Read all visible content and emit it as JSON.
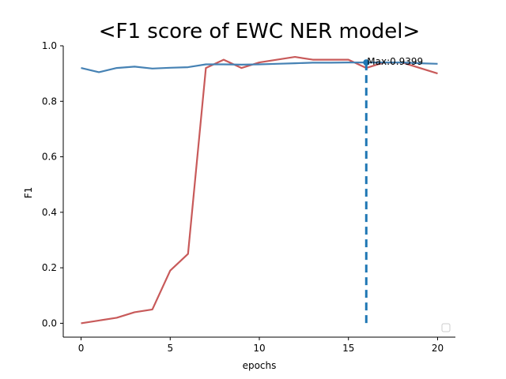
{
  "chart_data": {
    "type": "line",
    "title": "<F1 score of EWC NER model>",
    "xlabel": "epochs",
    "ylabel": "F1",
    "xlim": [
      -1,
      21
    ],
    "ylim": [
      -0.05,
      1.0
    ],
    "xticks": [
      0,
      5,
      10,
      15,
      20
    ],
    "yticks": [
      0.0,
      0.2,
      0.4,
      0.6,
      0.8,
      1.0
    ],
    "grid": false,
    "legend": "bottom-right",
    "x": [
      0,
      1,
      2,
      3,
      4,
      5,
      6,
      7,
      8,
      9,
      10,
      11,
      12,
      13,
      14,
      15,
      16,
      17,
      18,
      19,
      20
    ],
    "series": [
      {
        "color": "#c85a5a",
        "values": [
          0.0,
          0.01,
          0.02,
          0.04,
          0.05,
          0.19,
          0.25,
          0.92,
          0.95,
          0.92,
          0.94,
          0.95,
          0.96,
          0.95,
          0.95,
          0.95,
          0.92,
          0.94,
          0.94,
          0.92,
          0.9
        ]
      },
      {
        "color": "#4682b4",
        "values": [
          0.92,
          0.905,
          0.92,
          0.925,
          0.918,
          0.921,
          0.923,
          0.933,
          0.933,
          0.932,
          0.933,
          0.935,
          0.937,
          0.939,
          0.939,
          0.94,
          0.94,
          0.94,
          0.94,
          0.937,
          0.935
        ]
      }
    ],
    "annotation": {
      "text": "Max:0.9399",
      "x": 16,
      "y": 0.9399,
      "color": "#1f77b4"
    }
  }
}
